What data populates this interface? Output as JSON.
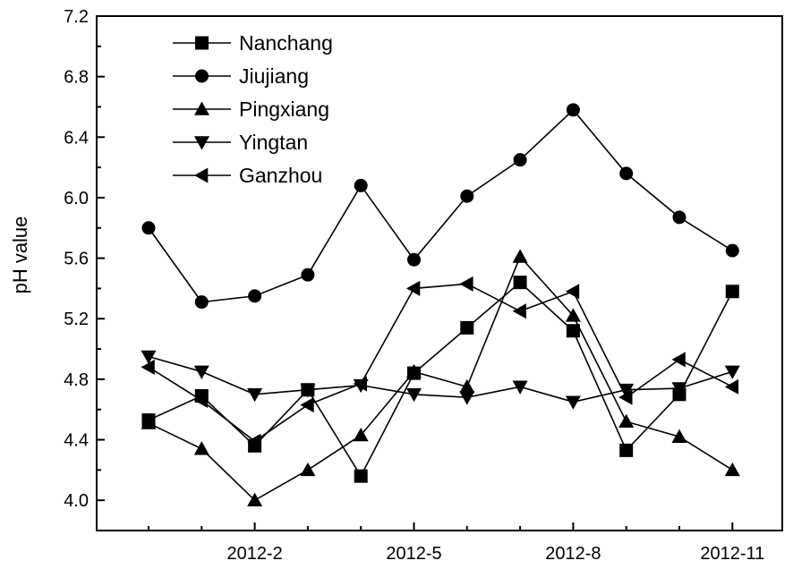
{
  "chart_data": {
    "type": "line",
    "title": "",
    "xlabel": "",
    "ylabel": "pH value",
    "x": [
      "2011-12",
      "2012-1",
      "2012-2",
      "2012-3",
      "2012-4",
      "2012-5",
      "2012-6",
      "2012-7",
      "2012-8",
      "2012-9",
      "2012-10",
      "2012-11"
    ],
    "x_tick_labels": [
      "2012-2",
      "2012-5",
      "2012-8",
      "2012-11"
    ],
    "y_tick_labels": [
      "4.0",
      "4.4",
      "4.8",
      "5.2",
      "5.6",
      "6.0",
      "6.4",
      "6.8",
      "7.2"
    ],
    "ylim": [
      3.8,
      7.2
    ],
    "grid": false,
    "legend_position": "top-left",
    "series": [
      {
        "name": "Nanchang",
        "marker": "square",
        "values": [
          4.53,
          4.69,
          4.36,
          4.73,
          4.16,
          4.84,
          5.14,
          5.44,
          5.12,
          4.33,
          4.7,
          5.38
        ]
      },
      {
        "name": "Jiujiang",
        "marker": "circle",
        "values": [
          5.8,
          5.31,
          5.35,
          5.49,
          6.08,
          5.59,
          6.01,
          6.25,
          6.58,
          6.16,
          5.87,
          5.65
        ]
      },
      {
        "name": "Pingxiang",
        "marker": "triangle-up",
        "values": [
          4.51,
          4.34,
          4.0,
          4.2,
          4.43,
          4.85,
          4.75,
          5.61,
          5.22,
          4.52,
          4.42,
          4.2
        ]
      },
      {
        "name": "Yingtan",
        "marker": "triangle-down",
        "values": [
          4.95,
          4.85,
          4.7,
          4.73,
          4.76,
          4.7,
          4.68,
          4.75,
          4.65,
          4.73,
          4.74,
          4.85
        ]
      },
      {
        "name": "Ganzhou",
        "marker": "triangle-left",
        "values": [
          4.88,
          4.66,
          4.39,
          4.63,
          4.77,
          5.4,
          5.43,
          5.25,
          5.38,
          4.68,
          4.93,
          4.75
        ]
      }
    ]
  }
}
